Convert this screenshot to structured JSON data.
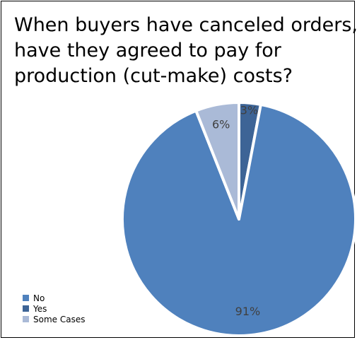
{
  "chart_data": {
    "type": "pie",
    "title_lines": [
      "When buyers have canceled orders,",
      "have they agreed to pay for",
      "production (cut-make) costs?"
    ],
    "slices": [
      {
        "name": "Yes",
        "value": 3,
        "label": "3%",
        "color": "#3d6496"
      },
      {
        "name": "No",
        "value": 91,
        "label": "91%",
        "color": "#4f81bd"
      },
      {
        "name": "Some Cases",
        "value": 6,
        "label": "6%",
        "color": "#aabad7"
      }
    ],
    "legend": [
      "No",
      "Yes",
      "Some Cases"
    ],
    "legend_position": "bottom-left"
  }
}
